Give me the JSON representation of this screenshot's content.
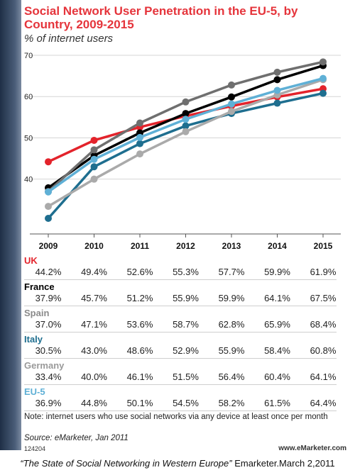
{
  "header": {
    "title": "Social Network User Penetration in the EU-5, by Country, 2009-2015",
    "subtitle": "% of internet users"
  },
  "chart_data": {
    "type": "line",
    "x": [
      "2009",
      "2010",
      "2011",
      "2012",
      "2013",
      "2014",
      "2015"
    ],
    "ylim": [
      25,
      70
    ],
    "yticks": [
      "70",
      "60",
      "50",
      "40"
    ],
    "series": [
      {
        "name": "UK",
        "color": "#e3232b",
        "values": [
          44.2,
          49.4,
          52.6,
          55.3,
          57.7,
          59.9,
          61.9
        ]
      },
      {
        "name": "France",
        "color": "#000000",
        "values": [
          37.9,
          45.7,
          51.2,
          55.9,
          59.9,
          64.1,
          67.5
        ]
      },
      {
        "name": "Spain",
        "color": "#6f6f6f",
        "values": [
          37.0,
          47.1,
          53.6,
          58.7,
          62.8,
          65.9,
          68.4
        ]
      },
      {
        "name": "Italy",
        "color": "#1e6e8f",
        "values": [
          30.5,
          43.0,
          48.6,
          52.9,
          55.9,
          58.4,
          60.8
        ]
      },
      {
        "name": "Germany",
        "color": "#aaaaaa",
        "values": [
          33.4,
          40.0,
          46.1,
          51.5,
          56.4,
          60.4,
          64.1
        ]
      },
      {
        "name": "EU-5",
        "color": "#5fb0d6",
        "values": [
          36.9,
          44.8,
          50.1,
          54.5,
          58.2,
          61.5,
          64.4
        ]
      }
    ]
  },
  "table": {
    "rows": [
      {
        "name": "UK",
        "color": "#e3232b",
        "values": [
          "44.2%",
          "49.4%",
          "52.6%",
          "55.3%",
          "57.7%",
          "59.9%",
          "61.9%"
        ]
      },
      {
        "name": "France",
        "color": "#000000",
        "values": [
          "37.9%",
          "45.7%",
          "51.2%",
          "55.9%",
          "59.9%",
          "64.1%",
          "67.5%"
        ]
      },
      {
        "name": "Spain",
        "color": "#8a8a8a",
        "values": [
          "37.0%",
          "47.1%",
          "53.6%",
          "58.7%",
          "62.8%",
          "65.9%",
          "68.4%"
        ]
      },
      {
        "name": "Italy",
        "color": "#1e6e8f",
        "values": [
          "30.5%",
          "43.0%",
          "48.6%",
          "52.9%",
          "55.9%",
          "58.4%",
          "60.8%"
        ]
      },
      {
        "name": "Germany",
        "color": "#9a9a9a",
        "values": [
          "33.4%",
          "40.0%",
          "46.1%",
          "51.5%",
          "56.4%",
          "60.4%",
          "64.1%"
        ]
      },
      {
        "name": "EU-5",
        "color": "#5fb0d6",
        "values": [
          "36.9%",
          "44.8%",
          "50.1%",
          "54.5%",
          "58.2%",
          "61.5%",
          "64.4%"
        ]
      }
    ]
  },
  "footer": {
    "note": "Note: internet users who use social networks via any device at least once per month",
    "source": "Source: eMarketer, Jan 2011",
    "id": "124204",
    "brand": "www.eMarketer.com",
    "caption_title": "“The State of Social Networking in Western Europe”",
    "caption_rest": " Emarketer.March 2,2011"
  }
}
